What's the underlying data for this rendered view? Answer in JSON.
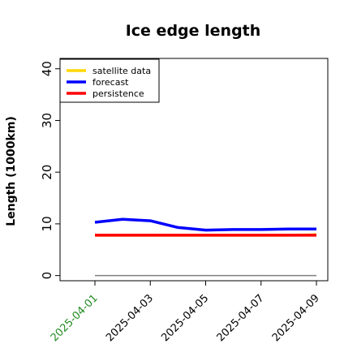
{
  "chart_data": {
    "type": "line",
    "title": "Ice edge length",
    "xlabel": "",
    "ylabel": "Length (1000km)",
    "x": [
      "2025-04-01",
      "2025-04-02",
      "2025-04-03",
      "2025-04-04",
      "2025-04-05",
      "2025-04-06",
      "2025-04-07",
      "2025-04-08",
      "2025-04-09"
    ],
    "xticks": [
      "2025-04-01",
      "2025-04-03",
      "2025-04-05",
      "2025-04-07",
      "2025-04-09"
    ],
    "xtick_colors": [
      "#228b22",
      "#000000",
      "#000000",
      "#000000",
      "#000000"
    ],
    "yticks": [
      "0",
      "10",
      "20",
      "30",
      "40"
    ],
    "ylim": [
      -1,
      42
    ],
    "grid": false,
    "legend_position": "top-left",
    "series": [
      {
        "name": "satellite data",
        "color": "#ffd700",
        "values": [
          7.8,
          7.8,
          7.8,
          7.8,
          7.8,
          7.8,
          7.8,
          7.8,
          7.9
        ]
      },
      {
        "name": "forecast",
        "color": "#0000ff",
        "values": [
          10.3,
          10.9,
          10.6,
          9.3,
          8.8,
          8.9,
          8.9,
          9.0,
          9.0
        ]
      },
      {
        "name": "persistence",
        "color": "#ff0000",
        "values": [
          7.8,
          7.8,
          7.8,
          7.8,
          7.8,
          7.8,
          7.8,
          7.8,
          7.8
        ]
      }
    ],
    "reference_line": {
      "color": "#808080",
      "values": [
        0,
        0,
        0,
        0,
        0,
        0,
        0,
        0,
        0
      ]
    }
  }
}
